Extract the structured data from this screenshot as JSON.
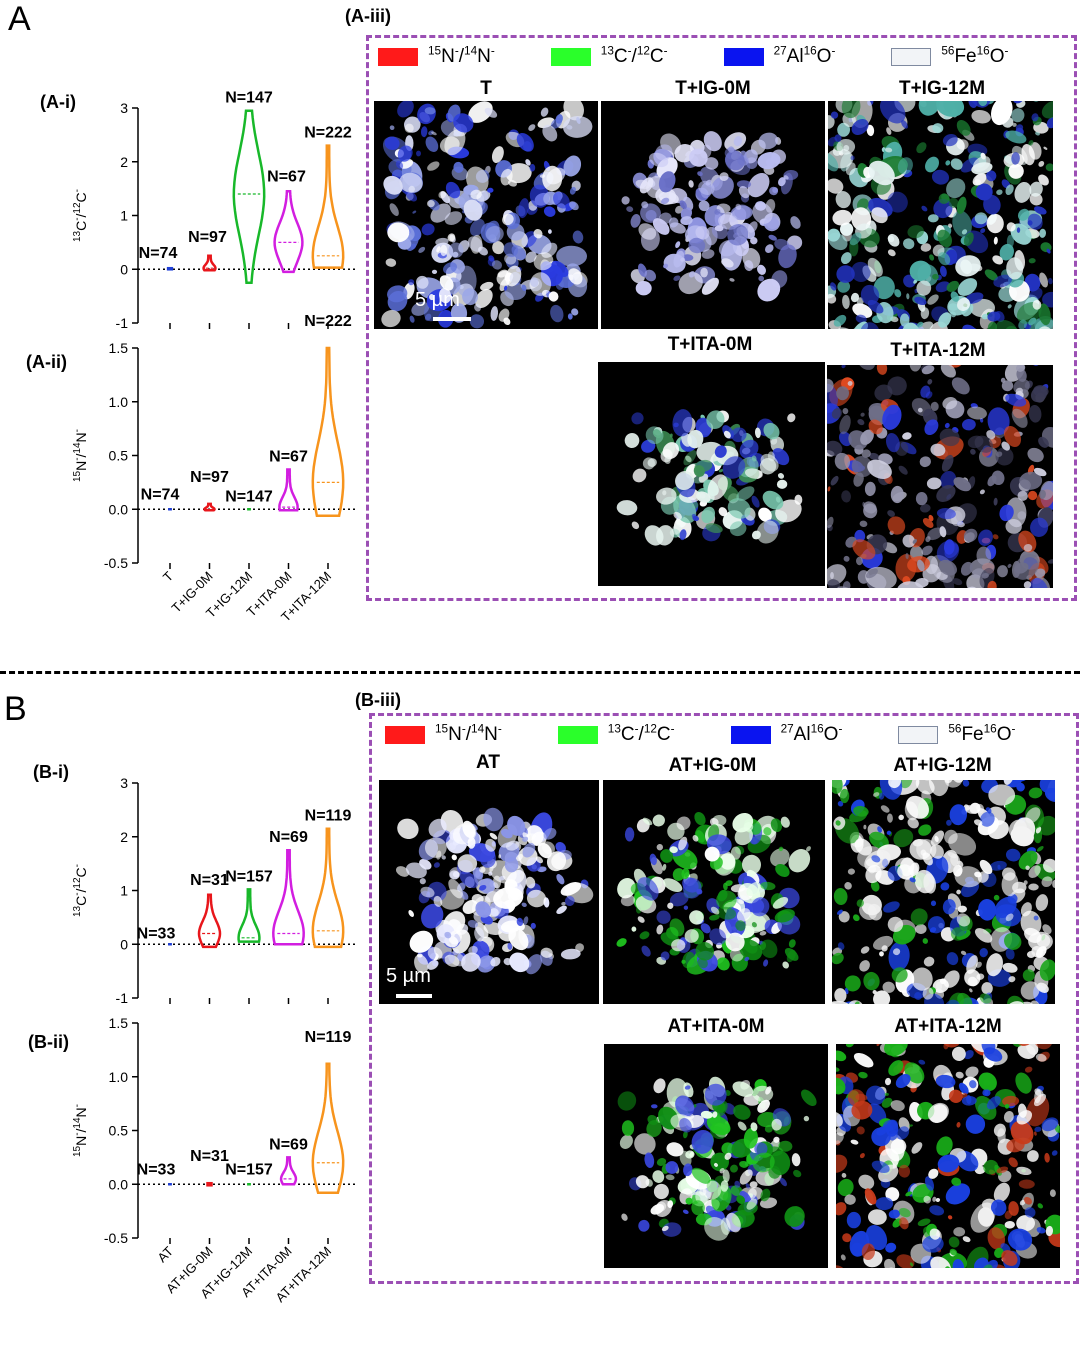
{
  "panels": {
    "A": {
      "letter": "A",
      "labels": {
        "i": "(A-i)",
        "ii": "(A-ii)",
        "iii": "(A-iii)"
      },
      "categories": [
        "T",
        "T+IG-0M",
        "T+IG-12M",
        "T+ITA-0M",
        "T+ITA-12M"
      ],
      "colors": [
        "#1f3fd6",
        "#e8161b",
        "#18b82a",
        "#d21ee0",
        "#f7941d"
      ],
      "counts": [
        "N=74",
        "N=97",
        "N=147",
        "N=67",
        "N=222"
      ],
      "images": {
        "row1": [
          "T",
          "T+IG-0M",
          "T+IG-12M"
        ],
        "row2": [
          "T+ITA-0M",
          "T+ITA-12M"
        ]
      },
      "scale_label": "5 µm"
    },
    "B": {
      "letter": "B",
      "labels": {
        "i": "(B-i)",
        "ii": "(B-ii)",
        "iii": "(B-iii)"
      },
      "categories": [
        "AT",
        "AT+IG-0M",
        "AT+IG-12M",
        "AT+ITA-0M",
        "AT+ITA-12M"
      ],
      "colors": [
        "#1f3fd6",
        "#e8161b",
        "#18b82a",
        "#d21ee0",
        "#f7941d"
      ],
      "counts": [
        "N=33",
        "N=31",
        "N=157",
        "N=69",
        "N=119"
      ],
      "images": {
        "row1": [
          "AT",
          "AT+IG-0M",
          "AT+IG-12M"
        ],
        "row2": [
          "AT+ITA-0M",
          "AT+ITA-12M"
        ]
      },
      "scale_label": "5 µm"
    }
  },
  "legend": {
    "items": [
      {
        "mass": "15",
        "ion": "N",
        "mass2": "14",
        "ion2": "N",
        "charge": "-",
        "ratio": true,
        "color": "#ff1a1a"
      },
      {
        "mass": "13",
        "ion": "C",
        "mass2": "12",
        "ion2": "C",
        "charge": "-",
        "ratio": true,
        "color": "#2aff2a"
      },
      {
        "mass": "27",
        "ion": "Al",
        "mass2": "16",
        "ion2": "O",
        "charge": "-",
        "ratio": false,
        "color": "#0a14f0"
      },
      {
        "mass": "56",
        "ion": "Fe",
        "mass2": "16",
        "ion2": "O",
        "charge": "-",
        "ratio": false,
        "color": "#f2f4f7"
      }
    ]
  },
  "chart_data": [
    {
      "type": "violin",
      "panel": "A-i",
      "ylabel": "13C-/12C-",
      "yticks": [
        "3",
        "2",
        "1",
        "0",
        "-1"
      ],
      "ylim": [
        -1,
        3
      ],
      "categories": [
        "T",
        "T+IG-0M",
        "T+IG-12M",
        "T+ITA-0M",
        "T+ITA-12M"
      ],
      "counts": [
        "N=74",
        "N=97",
        "N=147",
        "N=67",
        "N=222"
      ],
      "min": [
        0.0,
        -0.02,
        -0.25,
        -0.05,
        0.03
      ],
      "max": [
        0.02,
        0.25,
        2.95,
        1.45,
        2.3
      ],
      "median": [
        0.0,
        0.02,
        1.4,
        0.5,
        0.25
      ]
    },
    {
      "type": "violin",
      "panel": "A-ii",
      "ylabel": "15N-/14N-",
      "yticks": [
        "1.5",
        "1.0",
        "0.5",
        "0.0",
        "-0.5"
      ],
      "ylim": [
        -0.5,
        1.5
      ],
      "categories": [
        "T",
        "T+IG-0M",
        "T+IG-12M",
        "T+ITA-0M",
        "T+ITA-12M"
      ],
      "counts": [
        "N=74",
        "N=97",
        "N=147",
        "N=67",
        "N=222"
      ],
      "min": [
        0.0,
        -0.01,
        0.0,
        -0.01,
        -0.06
      ],
      "max": [
        0.0,
        0.05,
        0.0,
        0.37,
        1.5
      ],
      "median": [
        0.0,
        0.0,
        0.0,
        0.02,
        0.25
      ]
    },
    {
      "type": "violin",
      "panel": "B-i",
      "ylabel": "13C-/12C-",
      "yticks": [
        "3",
        "2",
        "1",
        "0",
        "-1"
      ],
      "ylim": [
        -1,
        3
      ],
      "categories": [
        "AT",
        "AT+IG-0M",
        "AT+IG-12M",
        "AT+ITA-0M",
        "AT+ITA-12M"
      ],
      "counts": [
        "N=33",
        "N=31",
        "N=157",
        "N=69",
        "N=119"
      ],
      "min": [
        0.0,
        -0.05,
        0.05,
        0.0,
        -0.05
      ],
      "max": [
        0.0,
        0.92,
        1.02,
        1.75,
        2.15
      ],
      "median": [
        0.0,
        0.2,
        0.12,
        0.2,
        0.25
      ]
    },
    {
      "type": "violin",
      "panel": "B-ii",
      "ylabel": "15N-/14N-",
      "yticks": [
        "1.5",
        "1.0",
        "0.5",
        "0.0",
        "-0.5"
      ],
      "ylim": [
        -0.5,
        1.5
      ],
      "categories": [
        "AT",
        "AT+IG-0M",
        "AT+IG-12M",
        "AT+ITA-0M",
        "AT+ITA-12M"
      ],
      "counts": [
        "N=33",
        "N=31",
        "N=157",
        "N=69",
        "N=119"
      ],
      "min": [
        0.0,
        -0.01,
        0.0,
        0.0,
        -0.08
      ],
      "max": [
        0.0,
        0.01,
        0.0,
        0.25,
        1.12
      ],
      "median": [
        0.0,
        0.0,
        0.0,
        0.05,
        0.2
      ]
    }
  ]
}
